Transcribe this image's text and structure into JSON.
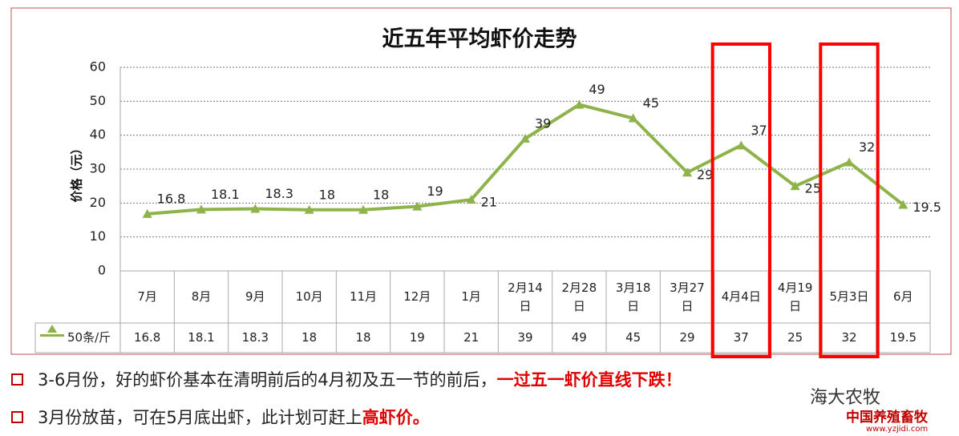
{
  "chart_data": {
    "type": "line",
    "title": "近五年平均虾价走势",
    "y_label": "价格（元）",
    "categories": [
      "7月",
      "8月",
      "9月",
      "10月",
      "11月",
      "12月",
      "1月",
      "2月14日",
      "2月28日",
      "3月18日",
      "3月27日",
      "4月4日",
      "4月19日",
      "5月3日",
      "6月"
    ],
    "series": [
      {
        "name": "50条/斤",
        "color": "#8eb34a",
        "values": [
          16.8,
          18.1,
          18.3,
          18,
          18,
          19,
          21,
          39,
          49,
          45,
          29,
          37,
          25,
          32,
          19.5
        ]
      }
    ],
    "ylim": [
      0,
      60
    ],
    "yticks": [
      0,
      10,
      20,
      30,
      40,
      50,
      60
    ],
    "grid": true
  },
  "notes": [
    {
      "text": "3-6月份，好的虾价基本在清明前后的4月初及五一节的前后，",
      "highlight": "一过五一虾价直线下跌！"
    },
    {
      "text": "3月份放苗，可在5月底出虾，此计划可赶上",
      "highlight": "高虾价。"
    }
  ],
  "watermark": {
    "account": "海大农牧",
    "site": "中国养殖畜牧",
    "url": "www.yzjidi.com"
  }
}
